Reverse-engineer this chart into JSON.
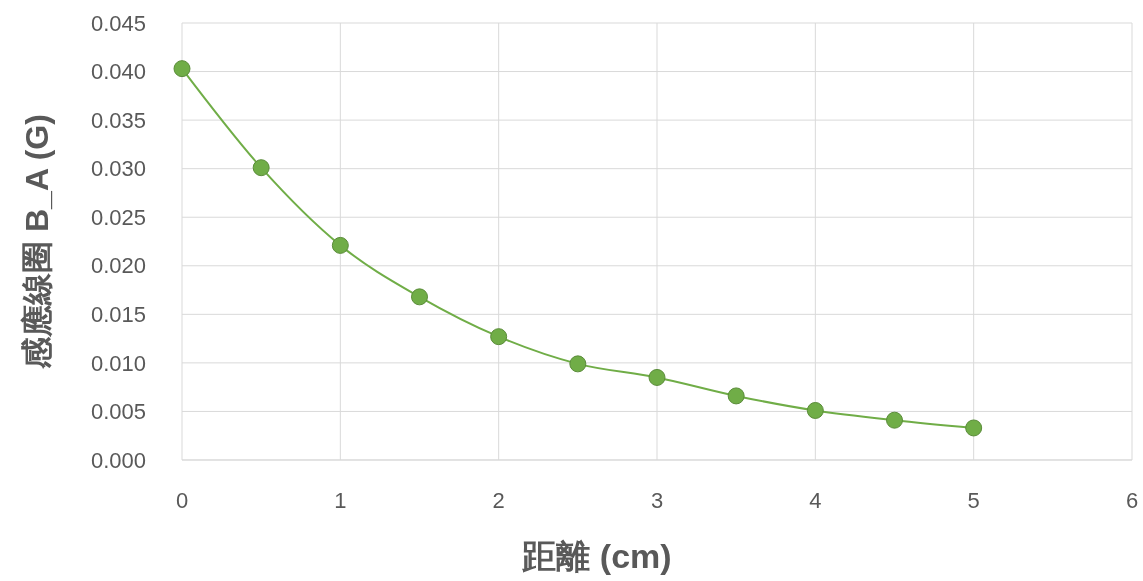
{
  "chart_data": {
    "type": "line",
    "xlabel": "距離 (cm)",
    "ylabel": "感應線圈 B_A (G)",
    "x": [
      0,
      0.5,
      1,
      1.5,
      2,
      2.5,
      3,
      3.5,
      4,
      4.5,
      5
    ],
    "series": [
      {
        "color": "#70ad47",
        "values": [
          0.0403,
          0.0301,
          0.0221,
          0.0168,
          0.0127,
          0.0099,
          0.0085,
          0.0066,
          0.0051,
          0.0041,
          0.0033
        ]
      }
    ],
    "xlim": [
      0,
      6
    ],
    "xticks": [
      0,
      1,
      2,
      3,
      4,
      5,
      6
    ],
    "ylim": [
      0,
      0.045
    ],
    "yticks": [
      {
        "value": 0,
        "label": "0.000"
      },
      {
        "value": 0.005,
        "label": "0.005"
      },
      {
        "value": 0.01,
        "label": "0.010"
      },
      {
        "value": 0.015,
        "label": "0.015"
      },
      {
        "value": 0.02,
        "label": "0.020"
      },
      {
        "value": 0.025,
        "label": "0.025"
      },
      {
        "value": 0.03,
        "label": "0.030"
      },
      {
        "value": 0.035,
        "label": "0.035"
      },
      {
        "value": 0.04,
        "label": "0.040"
      },
      {
        "value": 0.045,
        "label": "0.045"
      }
    ],
    "grid": true,
    "marker": "circle",
    "line_style": "solid"
  }
}
